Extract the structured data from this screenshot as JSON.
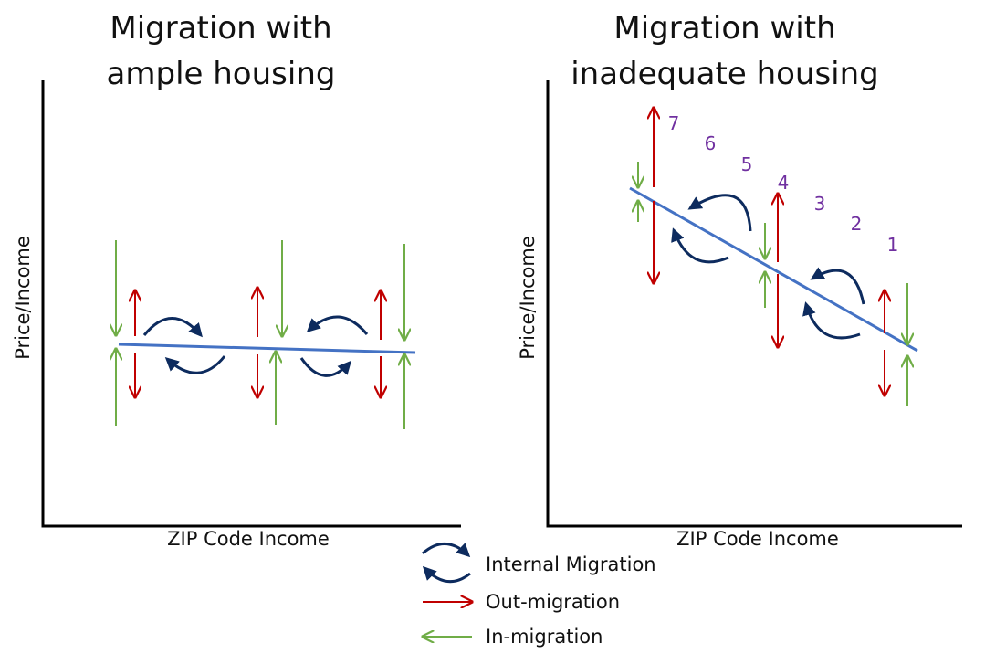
{
  "colors": {
    "trend": "#4472c4",
    "internal": "#0d2b5e",
    "out": "#c00000",
    "in": "#70ad47",
    "rank": "#7030a0"
  },
  "left_panel": {
    "title_line1": "Migration with",
    "title_line2": "ample housing",
    "x_label": "ZIP Code Income",
    "y_label": "Price/Income"
  },
  "right_panel": {
    "title_line1": "Migration with",
    "title_line2": "inadequate housing",
    "x_label": "ZIP Code Income",
    "y_label": "Price/Income",
    "rank_labels": [
      "7",
      "6",
      "5",
      "4",
      "3",
      "2",
      "1"
    ]
  },
  "legend": {
    "internal": "Internal Migration",
    "out": "Out-migration",
    "in": "In-migration"
  }
}
